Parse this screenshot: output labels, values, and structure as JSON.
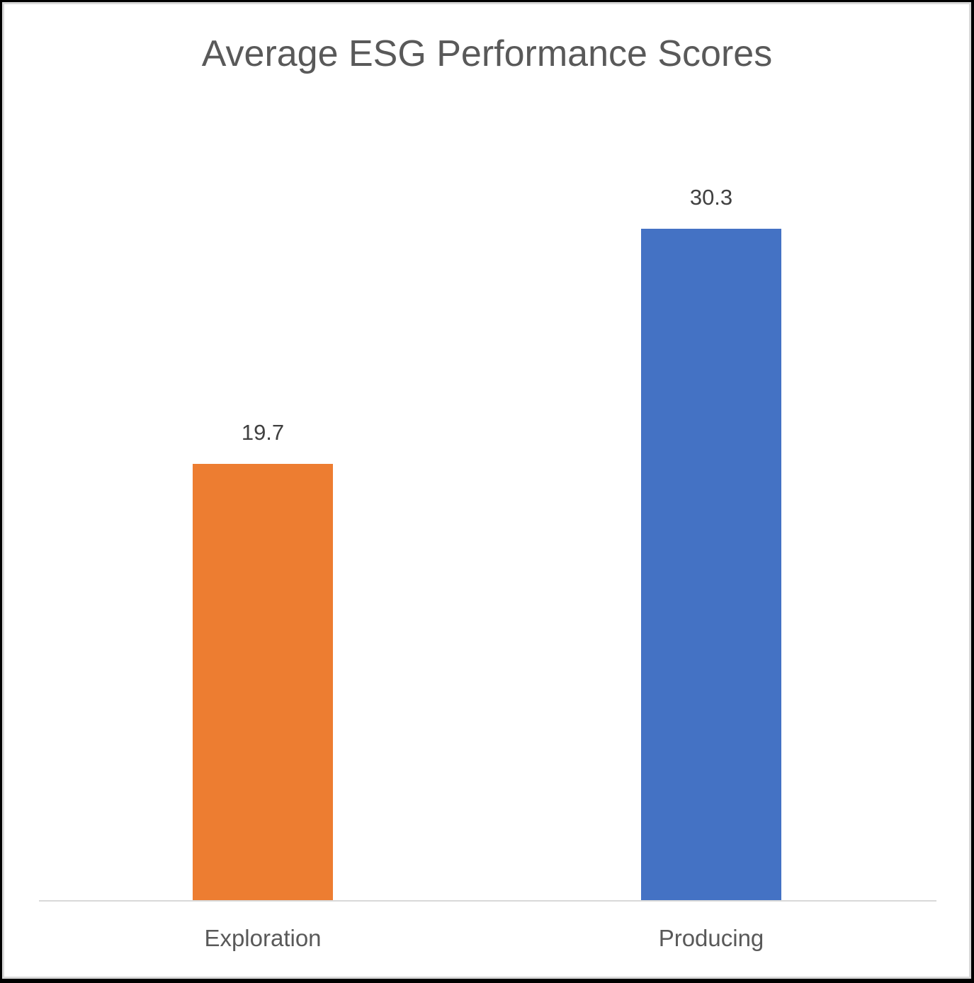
{
  "chart_data": {
    "type": "bar",
    "title": "Average ESG Performance Scores",
    "categories": [
      "Exploration",
      "Producing"
    ],
    "values": [
      19.7,
      30.3
    ],
    "data_labels": [
      "19.7",
      "30.3"
    ],
    "colors": [
      "#ED7D31",
      "#4472C4"
    ],
    "xlabel": "",
    "ylabel": "",
    "ylim": [
      0,
      35
    ],
    "grid": false,
    "legend": "none",
    "axis_color": "#d9d9d9"
  },
  "chart": {
    "title": "Average ESG Performance Scores",
    "bars": [
      {
        "category": "Exploration",
        "value": 19.7,
        "label": "19.7",
        "color": "#ED7D31"
      },
      {
        "category": "Producing",
        "value": 30.3,
        "label": "30.3",
        "color": "#4472C4"
      }
    ]
  }
}
